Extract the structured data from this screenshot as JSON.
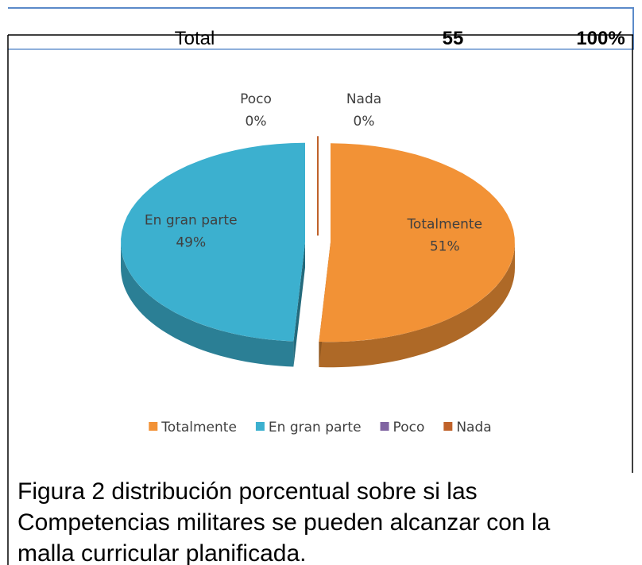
{
  "table": {
    "total_row": {
      "label": "Total",
      "count": 55,
      "percent": "100%"
    }
  },
  "chart_data": {
    "type": "pie",
    "three_d": true,
    "exploded": true,
    "categories": [
      "Totalmente",
      "En gran parte",
      "Poco",
      "Nada"
    ],
    "values": [
      51,
      49,
      0,
      0
    ],
    "value_labels": [
      "51%",
      "49%",
      "0%",
      "0%"
    ],
    "colors": [
      "#f29236",
      "#3cb0cf",
      "#8064a2",
      "#c0622a"
    ],
    "legend": "bottom"
  },
  "caption": {
    "lines": [
      "Figura 2 distribución porcentual sobre si las",
      "Competencias militares se pueden alcanzar con la",
      "malla curricular planificada."
    ]
  }
}
